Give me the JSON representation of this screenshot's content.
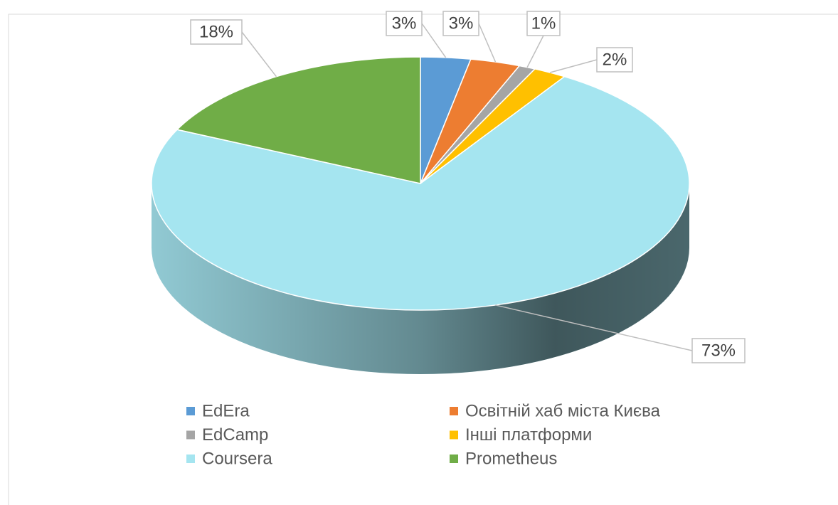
{
  "chart_data": {
    "type": "pie3d",
    "categories": [
      "EdEra",
      "Освітній хаб міста Києва",
      "EdCamp",
      "Інші платформи",
      "Coursera",
      "Prometheus"
    ],
    "values": [
      3,
      3,
      1,
      2,
      73,
      18
    ],
    "value_labels": [
      "3%",
      "3%",
      "1%",
      "2%",
      "73%",
      "18%"
    ],
    "colors": [
      "#5b9bd5",
      "#ed7d31",
      "#a5a5a5",
      "#ffc000",
      "#a5e5f0",
      "#70ad47"
    ]
  }
}
